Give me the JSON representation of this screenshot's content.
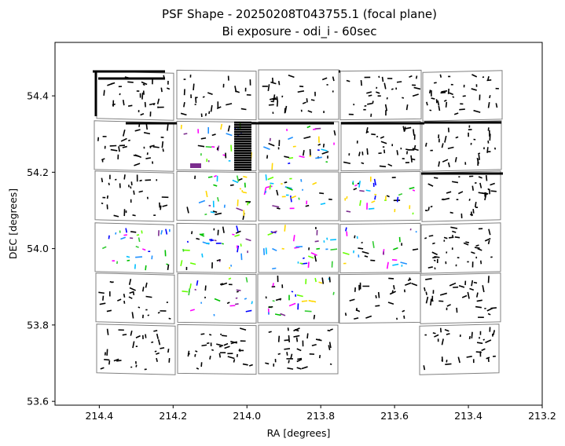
{
  "chart_data": {
    "type": "scatter",
    "title": "PSF Shape - 20250208T043755.1 (focal plane)",
    "subtitle": "Bi exposure - odi_i - 60sec",
    "xlabel": "RA [degrees]",
    "ylabel": "DEC [degrees]",
    "xlim": [
      214.52,
      213.2
    ],
    "ylim": [
      53.59,
      54.54
    ],
    "x_ticks": [
      "214.4",
      "214.2",
      "214.0",
      "213.8",
      "213.6",
      "213.4",
      "213.2"
    ],
    "x_tick_values": [
      214.4,
      214.2,
      214.0,
      213.8,
      213.6,
      213.4,
      213.2
    ],
    "y_ticks": [
      "53.6",
      "53.8",
      "54.0",
      "54.2",
      "54.4"
    ],
    "y_tick_values": [
      53.6,
      53.8,
      54.0,
      54.2,
      54.4
    ],
    "grid": false,
    "ota_grid": {
      "columns": 5,
      "rows_per_column": [
        6,
        6,
        6,
        5,
        6
      ],
      "missing": "column 4, bottom row"
    },
    "colors": {
      "frame": "#808080",
      "psf_stick_default": "#000000",
      "psf_stick_palette": [
        "#00c000",
        "#33cc33",
        "#00bfff",
        "#1e90ff",
        "#66ff00",
        "#ff00ff",
        "#7b2d8e",
        "#0000ff",
        "#ffd700",
        "#2f2f2f"
      ]
    }
  }
}
